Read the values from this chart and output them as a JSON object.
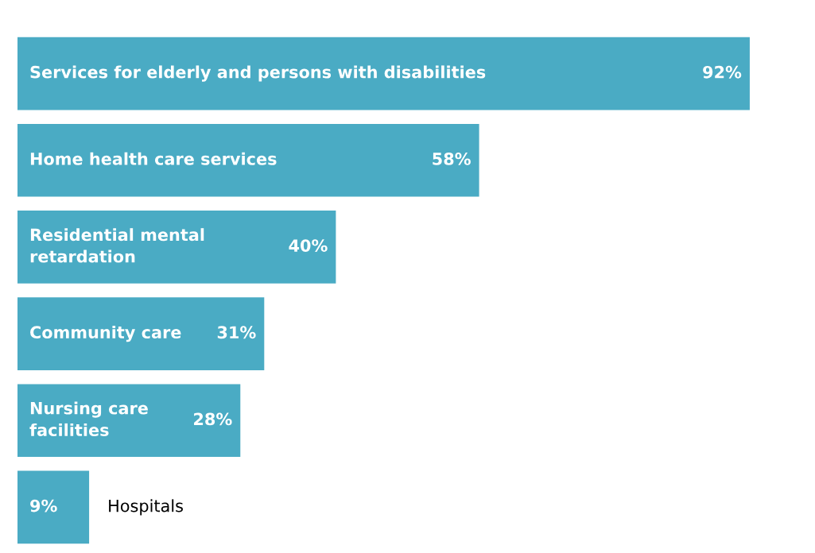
{
  "chart_data": {
    "type": "bar",
    "orientation": "horizontal",
    "categories": [
      "Services for elderly and persons with disabilities",
      "Home health care services",
      "Residential mental retardation",
      "Community care",
      "Nursing care facilities",
      "Hospitals"
    ],
    "values": [
      92,
      58,
      40,
      31,
      28,
      9
    ],
    "value_labels": [
      "92%",
      "58%",
      "40%",
      "31%",
      "28%",
      "9%"
    ],
    "color": "#4aabc4"
  }
}
